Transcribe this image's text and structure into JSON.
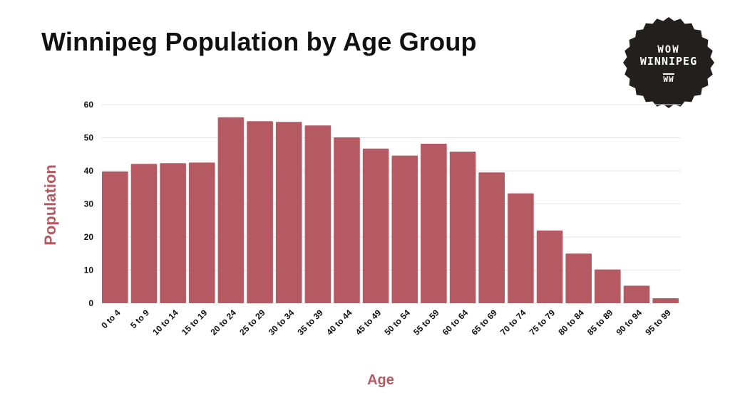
{
  "chart_data": {
    "type": "bar",
    "title": "Winnipeg Population by Age Group",
    "xlabel": "Age",
    "ylabel": "Population",
    "ylim": [
      0,
      60
    ],
    "yticks": [
      0,
      10,
      20,
      30,
      40,
      50,
      60
    ],
    "grid": true,
    "bar_color": "#b55a63",
    "categories": [
      "0 to 4",
      "5 to 9",
      "10 to 14",
      "15 to 19",
      "20 to 24",
      "25 to 29",
      "30 to 34",
      "35 to 39",
      "40 to 44",
      "45 to 49",
      "50 to 54",
      "55 to 59",
      "60 to 64",
      "65 to 69",
      "70 to 74",
      "75 to 79",
      "80 to 84",
      "85 to 89",
      "90 to 94",
      "95 to 99"
    ],
    "values": [
      39.8,
      42.1,
      42.3,
      42.5,
      56.2,
      55.0,
      54.8,
      53.7,
      50.1,
      46.7,
      44.6,
      48.2,
      45.8,
      39.5,
      33.2,
      22.0,
      15.0,
      10.2,
      5.3,
      1.5
    ]
  },
  "logo": {
    "line1": "WOW",
    "line2": "WINNIPEG",
    "line3": "WW",
    "color": "#231f1f"
  }
}
